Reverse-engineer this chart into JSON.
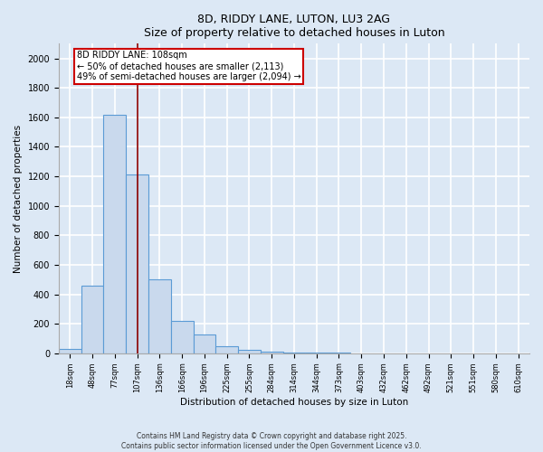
{
  "title1": "8D, RIDDY LANE, LUTON, LU3 2AG",
  "title2": "Size of property relative to detached houses in Luton",
  "xlabel": "Distribution of detached houses by size in Luton",
  "ylabel": "Number of detached properties",
  "categories": [
    "18sqm",
    "48sqm",
    "77sqm",
    "107sqm",
    "136sqm",
    "166sqm",
    "196sqm",
    "225sqm",
    "255sqm",
    "284sqm",
    "314sqm",
    "344sqm",
    "373sqm",
    "403sqm",
    "432sqm",
    "462sqm",
    "492sqm",
    "521sqm",
    "551sqm",
    "580sqm",
    "610sqm"
  ],
  "values": [
    30,
    460,
    1620,
    1210,
    500,
    220,
    130,
    45,
    20,
    10,
    5,
    3,
    2,
    1,
    1,
    1,
    0,
    0,
    0,
    0,
    0
  ],
  "bar_color": "#c9d9ed",
  "bar_edge_color": "#5b9bd5",
  "background_color": "#dce8f5",
  "grid_color": "#ffffff",
  "red_line_index": 3,
  "red_line_color": "#8b0000",
  "annotation_text": "8D RIDDY LANE: 108sqm\n← 50% of detached houses are smaller (2,113)\n49% of semi-detached houses are larger (2,094) →",
  "annotation_box_color": "#ffffff",
  "annotation_box_edge": "#cc0000",
  "ylim": [
    0,
    2100
  ],
  "yticks": [
    0,
    200,
    400,
    600,
    800,
    1000,
    1200,
    1400,
    1600,
    1800,
    2000
  ],
  "footnote1": "Contains HM Land Registry data © Crown copyright and database right 2025.",
  "footnote2": "Contains public sector information licensed under the Open Government Licence v3.0."
}
